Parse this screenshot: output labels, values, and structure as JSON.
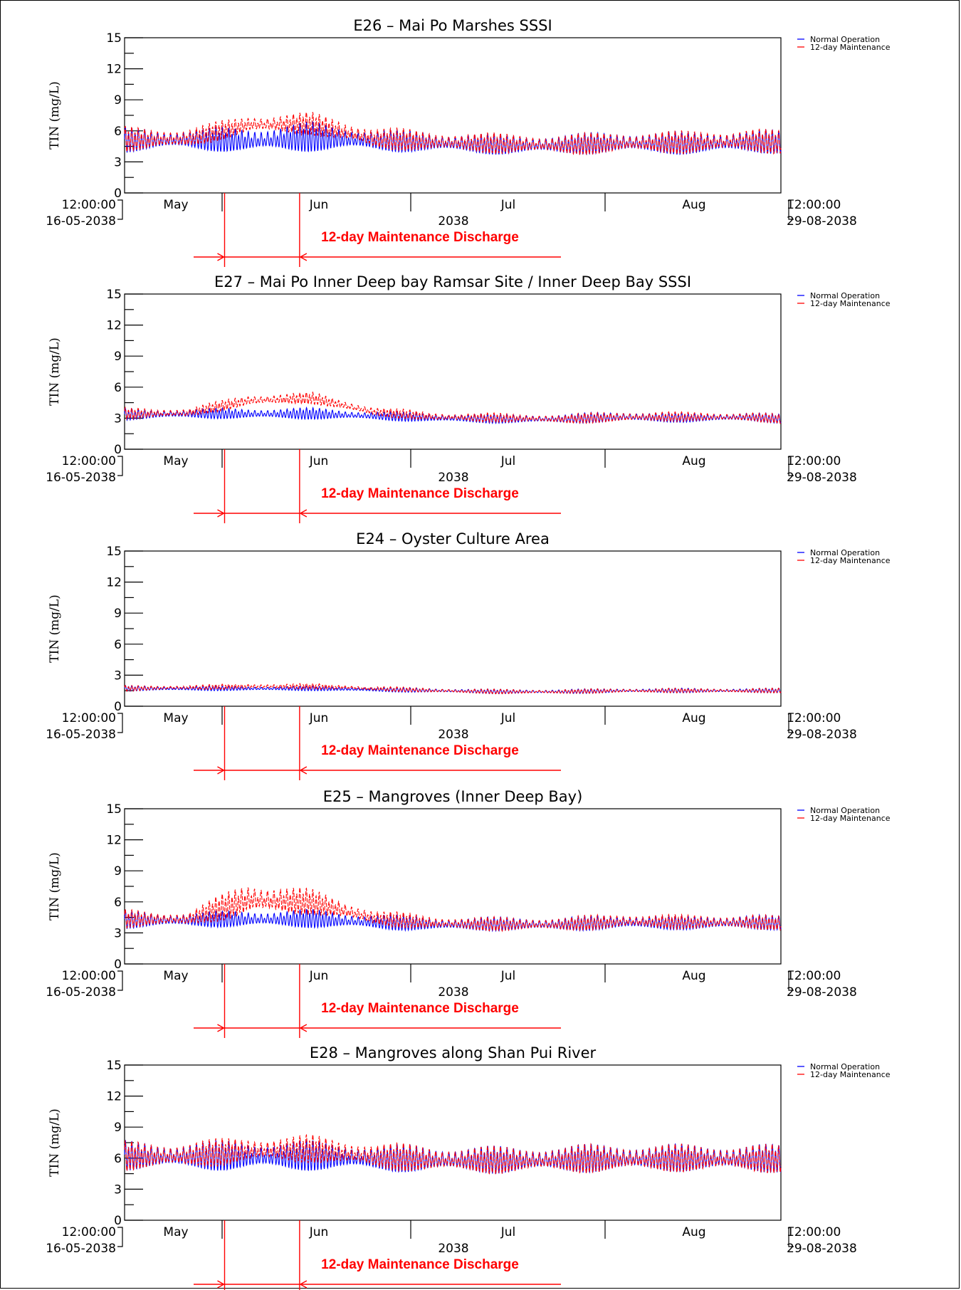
{
  "chart_data": [
    {
      "type": "line",
      "title": "E26 – Mai Po Marshes SSSI",
      "ylabel": "TIN (mg/L)",
      "ylim": [
        0,
        15
      ],
      "yticks": [
        0,
        3,
        6,
        9,
        12,
        15
      ],
      "x_start_label": [
        "12:00:00",
        "16-05-2038"
      ],
      "x_end_label": [
        "12:00:00",
        "29-08-2038"
      ],
      "x_range_days": [
        0,
        105
      ],
      "month_labels": [
        "May",
        "Jun",
        "Jul",
        "Aug"
      ],
      "year_label": "2038",
      "legend": [
        "Normal Operation",
        "12-day Maintenance"
      ],
      "maintenance_label": "12-day Maintenance Discharge",
      "maintenance_window_x": [
        "2038-06-01",
        "2038-06-13"
      ],
      "series": [
        {
          "name": "Normal Operation",
          "color": "#0000ff",
          "x": [
            "2038-05-16",
            "2038-05-26",
            "2038-06-05",
            "2038-06-15",
            "2038-06-25",
            "2038-07-05",
            "2038-07-15",
            "2038-07-25",
            "2038-08-04",
            "2038-08-14",
            "2038-08-24",
            "2038-08-29"
          ],
          "mean": [
            5.0,
            5.1,
            5.0,
            5.3,
            5.0,
            4.8,
            4.6,
            4.6,
            4.8,
            4.7,
            4.9,
            4.8
          ],
          "amplitude": [
            1.1,
            0.9,
            1.2,
            1.3,
            1.0,
            0.9,
            0.9,
            0.9,
            1.0,
            1.0,
            1.1,
            1.0
          ]
        },
        {
          "name": "12-day Maintenance",
          "color": "#ff0000",
          "x": [
            "2038-05-16",
            "2038-05-26",
            "2038-06-05",
            "2038-06-15",
            "2038-06-25",
            "2038-07-05",
            "2038-07-15",
            "2038-07-25",
            "2038-08-04",
            "2038-08-14",
            "2038-08-24",
            "2038-08-29"
          ],
          "mean": [
            5.1,
            5.2,
            6.6,
            6.6,
            5.2,
            4.9,
            4.7,
            4.6,
            4.8,
            4.8,
            5.0,
            4.8
          ],
          "amplitude": [
            1.1,
            0.9,
            0.8,
            1.0,
            1.0,
            0.9,
            0.9,
            0.9,
            1.0,
            1.0,
            1.1,
            1.0
          ]
        }
      ]
    },
    {
      "type": "line",
      "title": "E27 – Mai Po Inner Deep bay Ramsar Site / Inner Deep Bay SSSI",
      "ylabel": "TIN (mg/L)",
      "ylim": [
        0,
        15
      ],
      "yticks": [
        0,
        3,
        6,
        9,
        12,
        15
      ],
      "x_start_label": [
        "12:00:00",
        "16-05-2038"
      ],
      "x_end_label": [
        "12:00:00",
        "29-08-2038"
      ],
      "x_range_days": [
        0,
        105
      ],
      "month_labels": [
        "May",
        "Jun",
        "Jul",
        "Aug"
      ],
      "year_label": "2038",
      "legend": [
        "Normal Operation",
        "12-day Maintenance"
      ],
      "maintenance_label": "12-day Maintenance Discharge",
      "maintenance_window_x": [
        "2038-06-01",
        "2038-06-13"
      ],
      "series": [
        {
          "name": "Normal Operation",
          "color": "#0000ff",
          "x": [
            "2038-05-16",
            "2038-05-26",
            "2038-06-05",
            "2038-06-15",
            "2038-06-25",
            "2038-07-05",
            "2038-07-15",
            "2038-07-25",
            "2038-08-04",
            "2038-08-14",
            "2038-08-24",
            "2038-08-29"
          ],
          "mean": [
            3.3,
            3.4,
            3.4,
            3.4,
            3.2,
            3.0,
            2.9,
            2.9,
            3.1,
            3.0,
            3.1,
            2.9
          ],
          "amplitude": [
            0.5,
            0.4,
            0.5,
            0.5,
            0.4,
            0.4,
            0.4,
            0.4,
            0.5,
            0.4,
            0.4,
            0.4
          ]
        },
        {
          "name": "12-day Maintenance",
          "color": "#ff0000",
          "x": [
            "2038-05-16",
            "2038-05-26",
            "2038-06-05",
            "2038-06-15",
            "2038-06-25",
            "2038-07-05",
            "2038-07-15",
            "2038-07-25",
            "2038-08-04",
            "2038-08-14",
            "2038-08-24",
            "2038-08-29"
          ],
          "mean": [
            3.4,
            3.5,
            4.7,
            4.9,
            3.6,
            3.1,
            3.0,
            2.9,
            3.1,
            3.1,
            3.1,
            2.9
          ],
          "amplitude": [
            0.5,
            0.4,
            0.5,
            0.5,
            0.4,
            0.4,
            0.4,
            0.4,
            0.5,
            0.4,
            0.4,
            0.4
          ]
        }
      ]
    },
    {
      "type": "line",
      "title": "E24 – Oyster Culture Area",
      "ylabel": "TIN (mg/L)",
      "ylim": [
        0,
        15
      ],
      "yticks": [
        0,
        3,
        6,
        9,
        12,
        15
      ],
      "x_start_label": [
        "12:00:00",
        "16-05-2038"
      ],
      "x_end_label": [
        "12:00:00",
        "29-08-2038"
      ],
      "x_range_days": [
        0,
        105
      ],
      "month_labels": [
        "May",
        "Jun",
        "Jul",
        "Aug"
      ],
      "year_label": "2038",
      "legend": [
        "Normal Operation",
        "12-day Maintenance"
      ],
      "maintenance_label": "12-day Maintenance Discharge",
      "maintenance_window_x": [
        "2038-06-01",
        "2038-06-13"
      ],
      "series": [
        {
          "name": "Normal Operation",
          "color": "#0000ff",
          "x": [
            "2038-05-16",
            "2038-05-26",
            "2038-06-05",
            "2038-06-15",
            "2038-06-25",
            "2038-07-05",
            "2038-07-15",
            "2038-07-25",
            "2038-08-04",
            "2038-08-14",
            "2038-08-24",
            "2038-08-29"
          ],
          "mean": [
            1.7,
            1.7,
            1.7,
            1.7,
            1.6,
            1.5,
            1.4,
            1.4,
            1.5,
            1.5,
            1.5,
            1.5
          ],
          "amplitude": [
            0.25,
            0.2,
            0.2,
            0.2,
            0.2,
            0.2,
            0.2,
            0.2,
            0.2,
            0.2,
            0.2,
            0.2
          ]
        },
        {
          "name": "12-day Maintenance",
          "color": "#ff0000",
          "x": [
            "2038-05-16",
            "2038-05-26",
            "2038-06-05",
            "2038-06-15",
            "2038-06-25",
            "2038-07-05",
            "2038-07-15",
            "2038-07-25",
            "2038-08-04",
            "2038-08-14",
            "2038-08-24",
            "2038-08-29"
          ],
          "mean": [
            1.7,
            1.8,
            1.9,
            1.9,
            1.7,
            1.5,
            1.4,
            1.4,
            1.5,
            1.5,
            1.5,
            1.5
          ],
          "amplitude": [
            0.25,
            0.2,
            0.25,
            0.25,
            0.2,
            0.2,
            0.2,
            0.2,
            0.2,
            0.2,
            0.2,
            0.2
          ]
        }
      ]
    },
    {
      "type": "line",
      "title": "E25 – Mangroves (Inner Deep Bay)",
      "ylabel": "TIN (mg/L)",
      "ylim": [
        0,
        15
      ],
      "yticks": [
        0,
        3,
        6,
        9,
        12,
        15
      ],
      "x_start_label": [
        "12:00:00",
        "16-05-2038"
      ],
      "x_end_label": [
        "12:00:00",
        "29-08-2038"
      ],
      "x_range_days": [
        0,
        105
      ],
      "month_labels": [
        "May",
        "Jun",
        "Jul",
        "Aug"
      ],
      "year_label": "2038",
      "legend": [
        "Normal Operation",
        "12-day Maintenance"
      ],
      "maintenance_label": "12-day Maintenance Discharge",
      "maintenance_window_x": [
        "2038-06-01",
        "2038-06-13"
      ],
      "series": [
        {
          "name": "Normal Operation",
          "color": "#0000ff",
          "x": [
            "2038-05-16",
            "2038-05-26",
            "2038-06-05",
            "2038-06-15",
            "2038-06-25",
            "2038-07-05",
            "2038-07-15",
            "2038-07-25",
            "2038-08-04",
            "2038-08-14",
            "2038-08-24",
            "2038-08-29"
          ],
          "mean": [
            4.2,
            4.2,
            4.3,
            4.3,
            4.0,
            3.8,
            3.8,
            3.8,
            4.0,
            3.9,
            4.0,
            3.9
          ],
          "amplitude": [
            0.8,
            0.6,
            0.8,
            0.8,
            0.7,
            0.6,
            0.6,
            0.6,
            0.7,
            0.6,
            0.7,
            0.6
          ]
        },
        {
          "name": "12-day Maintenance",
          "color": "#ff0000",
          "x": [
            "2038-05-16",
            "2038-05-26",
            "2038-06-05",
            "2038-06-15",
            "2038-06-25",
            "2038-07-05",
            "2038-07-15",
            "2038-07-25",
            "2038-08-04",
            "2038-08-14",
            "2038-08-24",
            "2038-08-29"
          ],
          "mean": [
            4.3,
            4.3,
            6.2,
            5.9,
            4.4,
            3.9,
            3.8,
            3.8,
            4.1,
            4.0,
            4.0,
            3.9
          ],
          "amplitude": [
            0.8,
            0.6,
            1.6,
            1.1,
            0.7,
            0.6,
            0.6,
            0.6,
            0.7,
            0.6,
            0.7,
            0.6
          ]
        }
      ]
    },
    {
      "type": "line",
      "title": "E28 – Mangroves along Shan Pui River",
      "ylabel": "TIN (mg/L)",
      "ylim": [
        0,
        15
      ],
      "yticks": [
        0,
        3,
        6,
        9,
        12,
        15
      ],
      "x_start_label": [
        "12:00:00",
        "16-05-2038"
      ],
      "x_end_label": [
        "12:00:00",
        "29-08-2038"
      ],
      "x_range_days": [
        0,
        105
      ],
      "month_labels": [
        "May",
        "Jun",
        "Jul",
        "Aug"
      ],
      "year_label": "2038",
      "legend": [
        "Normal Operation",
        "12-day Maintenance"
      ],
      "maintenance_label": "12-day Maintenance Discharge",
      "maintenance_window_x": [
        "2038-06-01",
        "2038-06-13"
      ],
      "series": [
        {
          "name": "Normal Operation",
          "color": "#0000ff",
          "x": [
            "2038-05-16",
            "2038-05-26",
            "2038-06-05",
            "2038-06-15",
            "2038-06-25",
            "2038-07-05",
            "2038-07-15",
            "2038-07-25",
            "2038-08-04",
            "2038-08-14",
            "2038-08-24",
            "2038-08-29"
          ],
          "mean": [
            6.1,
            6.1,
            6.1,
            6.1,
            5.9,
            5.8,
            5.7,
            5.8,
            5.9,
            5.9,
            5.9,
            5.8
          ],
          "amplitude": [
            1.3,
            1.2,
            1.4,
            1.3,
            1.2,
            1.2,
            1.2,
            1.2,
            1.3,
            1.2,
            1.3,
            1.2
          ]
        },
        {
          "name": "12-day Maintenance",
          "color": "#ff0000",
          "x": [
            "2038-05-16",
            "2038-05-26",
            "2038-06-05",
            "2038-06-15",
            "2038-06-25",
            "2038-07-05",
            "2038-07-15",
            "2038-07-25",
            "2038-08-04",
            "2038-08-14",
            "2038-08-24",
            "2038-08-29"
          ],
          "mean": [
            6.1,
            6.2,
            6.7,
            6.8,
            6.1,
            5.8,
            5.7,
            5.8,
            5.9,
            5.9,
            5.9,
            5.8
          ],
          "amplitude": [
            1.3,
            1.2,
            1.2,
            1.2,
            1.2,
            1.2,
            1.2,
            1.2,
            1.3,
            1.2,
            1.3,
            1.2
          ]
        }
      ]
    }
  ]
}
